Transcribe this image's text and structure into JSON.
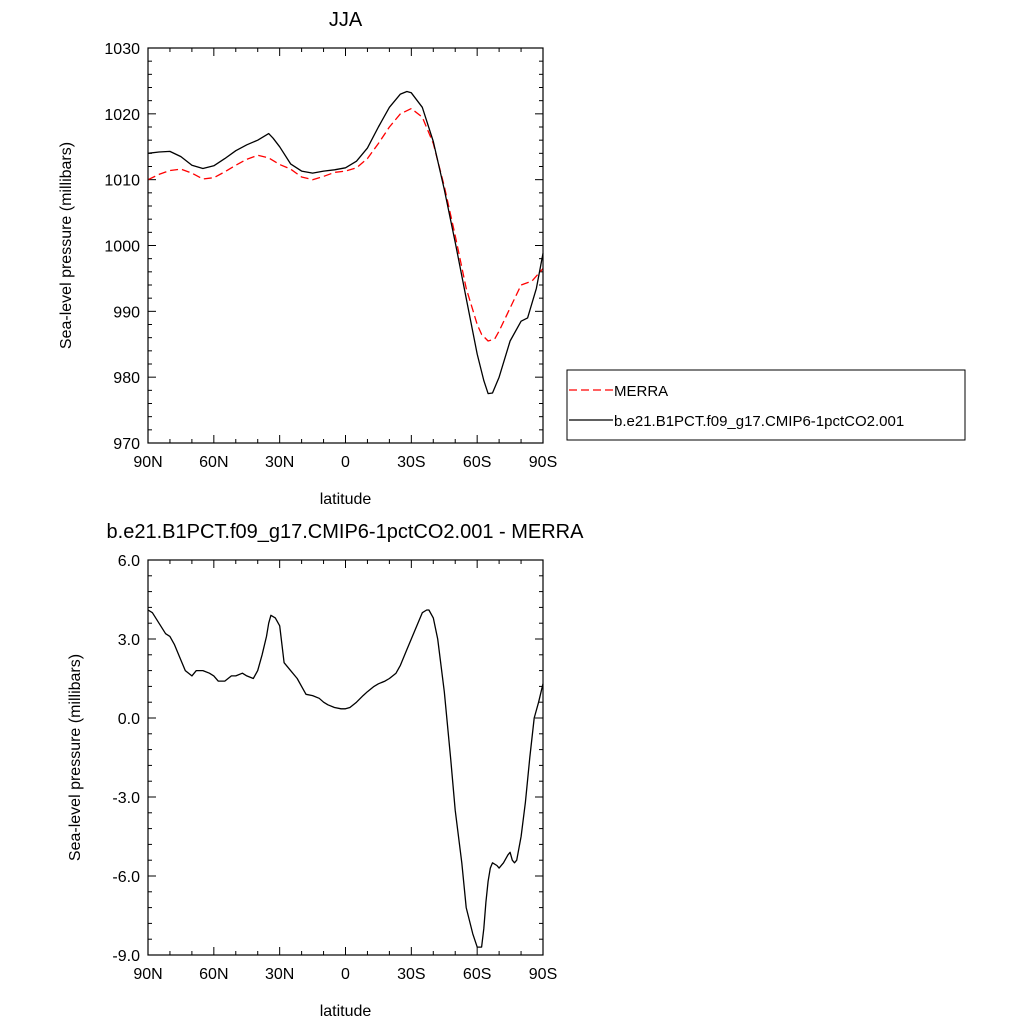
{
  "chart_data": [
    {
      "type": "line",
      "title": "JJA",
      "xlabel": "latitude",
      "ylabel": "Sea-level pressure (millibars)",
      "xlim": [
        90,
        -90
      ],
      "ylim": [
        970,
        1030
      ],
      "xtick_values": [
        90,
        60,
        30,
        0,
        -30,
        -60,
        -90
      ],
      "xtick_labels": [
        "90N",
        "60N",
        "30N",
        "0",
        "30S",
        "60S",
        "90S"
      ],
      "ytick_values": [
        970,
        980,
        990,
        1000,
        1010,
        1020,
        1030
      ],
      "ytick_labels": [
        "970",
        "980",
        "990",
        "1000",
        "1010",
        "1020",
        "1030"
      ],
      "grid": false,
      "legend": "right",
      "series": [
        {
          "name": "MERRA",
          "color": "#ff0000",
          "dash": "dashed",
          "x": [
            90,
            85,
            80,
            75,
            70,
            65,
            60,
            55,
            50,
            45,
            40,
            35,
            30,
            25,
            20,
            15,
            10,
            5,
            0,
            -5,
            -10,
            -15,
            -20,
            -25,
            -30,
            -35,
            -40,
            -45,
            -50,
            -55,
            -60,
            -62,
            -65,
            -68,
            -70,
            -75,
            -80,
            -85,
            -90
          ],
          "y": [
            1010.0,
            1010.8,
            1011.4,
            1011.6,
            1011.0,
            1010.1,
            1010.3,
            1011.2,
            1012.2,
            1013.1,
            1013.7,
            1013.3,
            1012.3,
            1011.6,
            1010.4,
            1010.0,
            1010.5,
            1011.1,
            1011.3,
            1011.8,
            1013.2,
            1015.5,
            1018.0,
            1020.0,
            1020.8,
            1019.5,
            1015.5,
            1009.0,
            1001.5,
            993.5,
            988.0,
            986.5,
            985.5,
            985.8,
            987.0,
            990.5,
            994.0,
            994.6,
            996.5
          ]
        },
        {
          "name": "b.e21.B1PCT.f09_g17.CMIP6-1pctCO2.001",
          "color": "#000000",
          "dash": "solid",
          "x": [
            90,
            85,
            80,
            75,
            70,
            65,
            60,
            55,
            50,
            45,
            40,
            35,
            33,
            30,
            25,
            20,
            15,
            10,
            5,
            0,
            -5,
            -10,
            -15,
            -20,
            -25,
            -28,
            -30,
            -35,
            -40,
            -45,
            -50,
            -55,
            -60,
            -63,
            -65,
            -67,
            -70,
            -75,
            -80,
            -83,
            -87,
            -90
          ],
          "y": [
            1014.0,
            1014.2,
            1014.3,
            1013.5,
            1012.2,
            1011.7,
            1012.1,
            1013.2,
            1014.4,
            1015.3,
            1016.0,
            1017.0,
            1016.3,
            1015.0,
            1012.4,
            1011.3,
            1011.0,
            1011.3,
            1011.5,
            1011.8,
            1012.8,
            1014.8,
            1018.0,
            1021.0,
            1023.0,
            1023.4,
            1023.2,
            1021.0,
            1015.8,
            1008.5,
            1000.5,
            992.0,
            983.5,
            979.5,
            977.5,
            977.6,
            980.0,
            985.5,
            988.5,
            989.0,
            993.5,
            998.8
          ]
        }
      ]
    },
    {
      "type": "line",
      "title": "b.e21.B1PCT.f09_g17.CMIP6-1pctCO2.001 - MERRA",
      "xlabel": "latitude",
      "ylabel": "Sea-level pressure (millibars)",
      "xlim": [
        90,
        -90
      ],
      "ylim": [
        -9.0,
        6.0
      ],
      "xtick_values": [
        90,
        60,
        30,
        0,
        -30,
        -60,
        -90
      ],
      "xtick_labels": [
        "90N",
        "60N",
        "30N",
        "0",
        "30S",
        "60S",
        "90S"
      ],
      "ytick_values": [
        -9,
        -6,
        -3,
        0,
        3,
        6
      ],
      "ytick_labels": [
        "-9.0",
        "-6.0",
        "-3.0",
        "0.0",
        "3.0",
        "6.0"
      ],
      "grid": false,
      "series": [
        {
          "color": "#000000",
          "dash": "solid",
          "x": [
            90,
            88,
            85,
            82,
            80,
            78,
            75,
            73,
            70,
            68,
            65,
            62,
            60,
            58,
            55,
            52,
            50,
            47,
            45,
            42,
            40,
            38,
            36,
            35,
            34,
            32,
            30,
            28,
            25,
            22,
            20,
            18,
            15,
            12,
            10,
            8,
            5,
            2,
            0,
            -2,
            -5,
            -8,
            -10,
            -13,
            -15,
            -18,
            -20,
            -23,
            -25,
            -28,
            -30,
            -33,
            -35,
            -37,
            -38,
            -40,
            -42,
            -45,
            -48,
            -50,
            -53,
            -55,
            -58,
            -60,
            -62,
            -63,
            -64,
            -65,
            -66,
            -67,
            -69,
            -70,
            -72,
            -74,
            -75,
            -76,
            -77,
            -78,
            -80,
            -82,
            -84,
            -86,
            -88,
            -90
          ],
          "y": [
            4.1,
            4.0,
            3.6,
            3.2,
            3.1,
            2.8,
            2.2,
            1.8,
            1.6,
            1.8,
            1.8,
            1.7,
            1.6,
            1.4,
            1.4,
            1.6,
            1.6,
            1.7,
            1.6,
            1.5,
            1.8,
            2.4,
            3.1,
            3.6,
            3.9,
            3.8,
            3.5,
            2.1,
            1.8,
            1.5,
            1.2,
            0.9,
            0.85,
            0.75,
            0.6,
            0.5,
            0.4,
            0.35,
            0.35,
            0.4,
            0.6,
            0.85,
            1.0,
            1.2,
            1.3,
            1.4,
            1.5,
            1.7,
            2.0,
            2.6,
            3.0,
            3.6,
            4.0,
            4.1,
            4.1,
            3.8,
            3.0,
            1.0,
            -1.6,
            -3.5,
            -5.5,
            -7.2,
            -8.2,
            -8.7,
            -8.7,
            -8.0,
            -7.0,
            -6.2,
            -5.7,
            -5.5,
            -5.6,
            -5.7,
            -5.5,
            -5.2,
            -5.1,
            -5.4,
            -5.5,
            -5.4,
            -4.5,
            -3.2,
            -1.5,
            0.0,
            0.6,
            1.3
          ]
        }
      ]
    }
  ]
}
